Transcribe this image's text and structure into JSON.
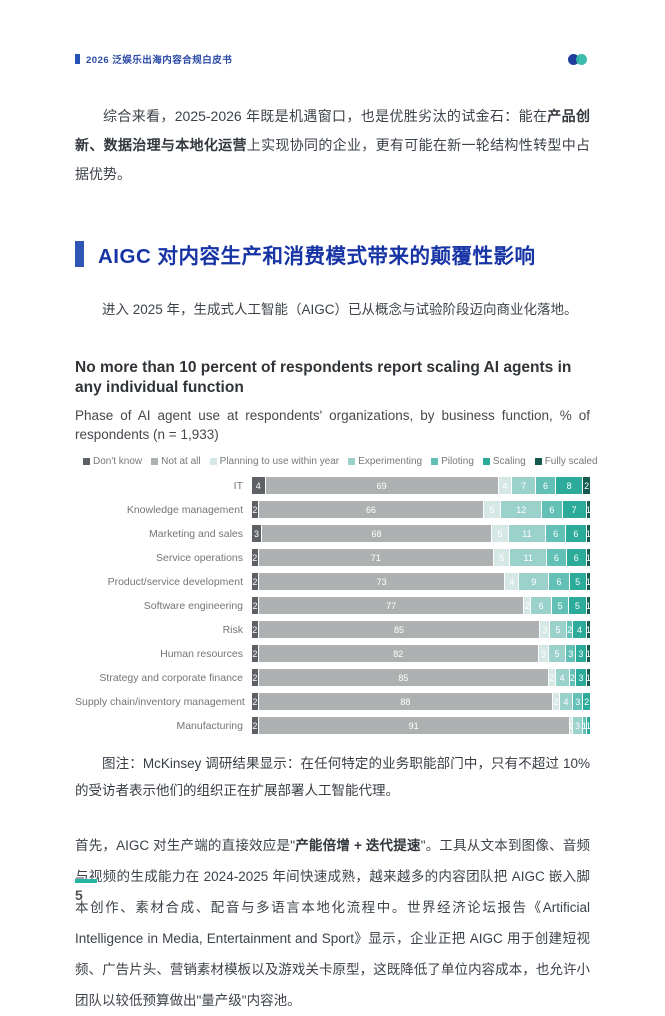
{
  "header": {
    "doc_title": "2026 泛娱乐出海内容合规白皮书"
  },
  "logo": {
    "left_color": "#1f3e9b",
    "right_color": "#2cb5a5"
  },
  "intro_paragraph": {
    "segments": [
      {
        "t": "综合来看，2025-2026 年既是机遇窗口，也是优胜劣汰的试金石：能在",
        "b": false
      },
      {
        "t": "产品创新、数据治理与本地化运营",
        "b": true
      },
      {
        "t": "上实现协同的企业，更有可能在新一轮结构性转型中占据优势。",
        "b": false
      }
    ]
  },
  "section": {
    "title": "AIGC 对内容生产和消费模式带来的颠覆性影响",
    "accent_color": "#2f56b5"
  },
  "lead_paragraph": {
    "segments": [
      {
        "t": "进入 2025 年，生成式人工智能（AIGC）已从概念与试验阶段迈向商业化落地。",
        "b": false
      }
    ]
  },
  "chart_data": {
    "type": "bar",
    "orientation": "horizontal-stacked",
    "title": "No more than 10 percent of respondents report scaling AI agents in any individual function",
    "subtitle": "Phase of AI agent use at respondents' organizations, by business function, % of respondents (n = 1,933)",
    "unit": "%",
    "legend_position": "top",
    "grid": false,
    "series_names": [
      "Don't know",
      "Not at all",
      "Planning to use within year",
      "Experimenting",
      "Piloting",
      "Scaling",
      "Fully scaled"
    ],
    "series_colors": [
      "#5d6165",
      "#adb1b1",
      "#d6e8e5",
      "#9bd1cb",
      "#63c0b7",
      "#2cab9a",
      "#145a4f"
    ],
    "categories": [
      "IT",
      "Knowledge management",
      "Marketing and sales",
      "Service operations",
      "Product/service development",
      "Software engineering",
      "Risk",
      "Human resources",
      "Strategy and corporate finance",
      "Supply chain/inventory management",
      "Manufacturing"
    ],
    "rows": [
      [
        4,
        69,
        4,
        7,
        6,
        8,
        2
      ],
      [
        2,
        66,
        5,
        12,
        6,
        7,
        1
      ],
      [
        3,
        68,
        5,
        11,
        6,
        6,
        1
      ],
      [
        2,
        71,
        5,
        11,
        6,
        6,
        1
      ],
      [
        2,
        73,
        4,
        9,
        6,
        5,
        1
      ],
      [
        2,
        77,
        2,
        6,
        5,
        5,
        1
      ],
      [
        2,
        85,
        3,
        5,
        2,
        4,
        1
      ],
      [
        2,
        82,
        3,
        5,
        3,
        3,
        1
      ],
      [
        2,
        85,
        2,
        4,
        2,
        3,
        1
      ],
      [
        2,
        88,
        2,
        4,
        3,
        2,
        0
      ],
      [
        2,
        91,
        1,
        3,
        1,
        1,
        0
      ]
    ]
  },
  "caption": "图注：McKinsey 调研结果显示：在任何特定的业务职能部门中，只有不超过 10% 的受访者表示他们的组织正在扩展部署人工智能代理。",
  "body_paragraph": {
    "segments": [
      {
        "t": "首先，AIGC 对生产端的直接效应是\"",
        "b": false
      },
      {
        "t": "产能倍增 + 迭代提速",
        "b": true
      },
      {
        "t": "\"。工具从文本到图像、音频与视频的生成能力在 2024-2025 年间快速成熟，越来越多的内容团队把 AIGC 嵌入脚本创作、素材合成、配音与多语言本地化流程中。世界经济论坛报告《Artificial Intelligence in Media, Entertainment and Sport》显示，企业正把 AIGC 用于创建短视频、广告片头、营销素材模板以及游戏关卡原型，这既降低了单位内容成本，也允许小团队以较低预算做出\"量产级\"内容池。",
        "b": false
      }
    ]
  },
  "footer": {
    "page_number": "5",
    "accent_color": "#27b5a3"
  }
}
